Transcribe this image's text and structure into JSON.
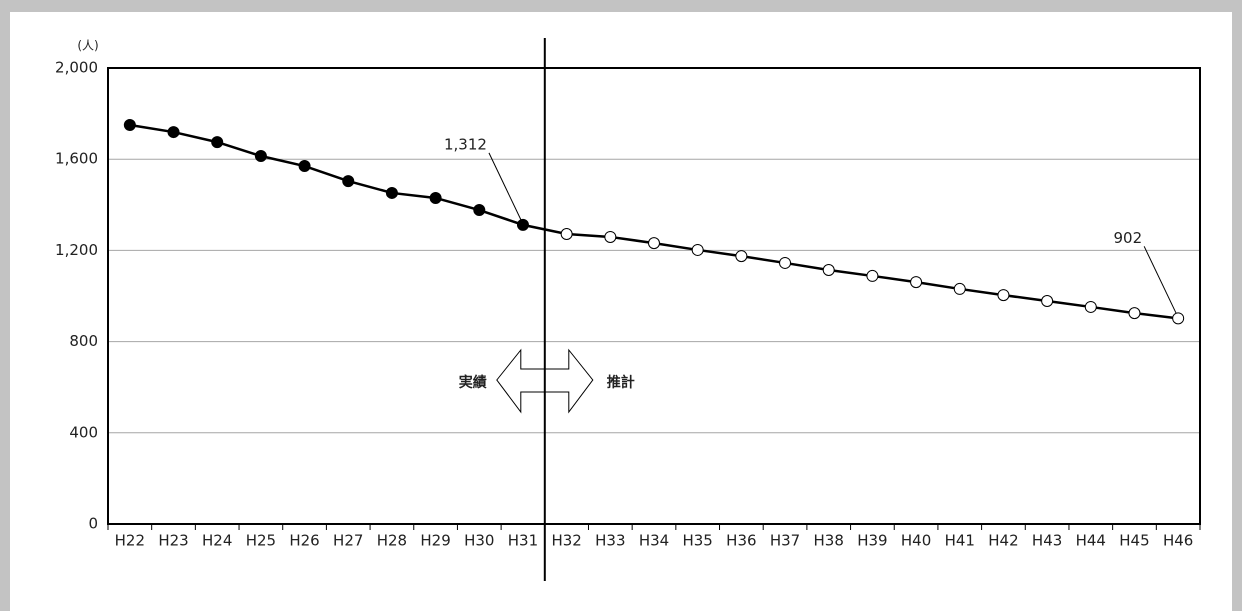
{
  "chart_data": {
    "type": "line",
    "y_unit": "(人)",
    "categories": [
      "H22",
      "H23",
      "H24",
      "H25",
      "H26",
      "H27",
      "H28",
      "H29",
      "H30",
      "H31",
      "H32",
      "H33",
      "H34",
      "H35",
      "H36",
      "H37",
      "H38",
      "H39",
      "H40",
      "H41",
      "H42",
      "H43",
      "H44",
      "H45",
      "H46"
    ],
    "series": [
      {
        "color": "#000000",
        "values": [
          1750,
          1719,
          1675,
          1614,
          1570,
          1504,
          1452,
          1430,
          1377,
          1312,
          1272,
          1259,
          1232,
          1202,
          1175,
          1145,
          1114,
          1088,
          1061,
          1031,
          1004,
          978,
          952,
          925,
          902
        ],
        "value_labels": [
          null,
          null,
          null,
          null,
          null,
          null,
          null,
          null,
          null,
          "1,312",
          null,
          null,
          null,
          null,
          null,
          null,
          null,
          null,
          null,
          null,
          null,
          null,
          null,
          null,
          "902"
        ],
        "point_colors": [
          "#000000",
          "#000000",
          "#000000",
          "#000000",
          "#000000",
          "#000000",
          "#000000",
          "#000000",
          "#000000",
          "#000000",
          "#ffffff",
          "#ffffff",
          "#ffffff",
          "#ffffff",
          "#ffffff",
          "#ffffff",
          "#ffffff",
          "#ffffff",
          "#ffffff",
          "#ffffff",
          "#ffffff",
          "#ffffff",
          "#ffffff",
          "#ffffff",
          "#ffffff"
        ]
      }
    ],
    "annotations": [
      "実績",
      "推計"
    ],
    "ylim": [
      0,
      2000
    ],
    "yticks": [
      0,
      400,
      800,
      {
        "value": 1200,
        "label": "1,200"
      },
      {
        "value": 1600,
        "label": "1,600"
      },
      {
        "value": 2000,
        "label": "2,000"
      }
    ],
    "grid": true
  }
}
